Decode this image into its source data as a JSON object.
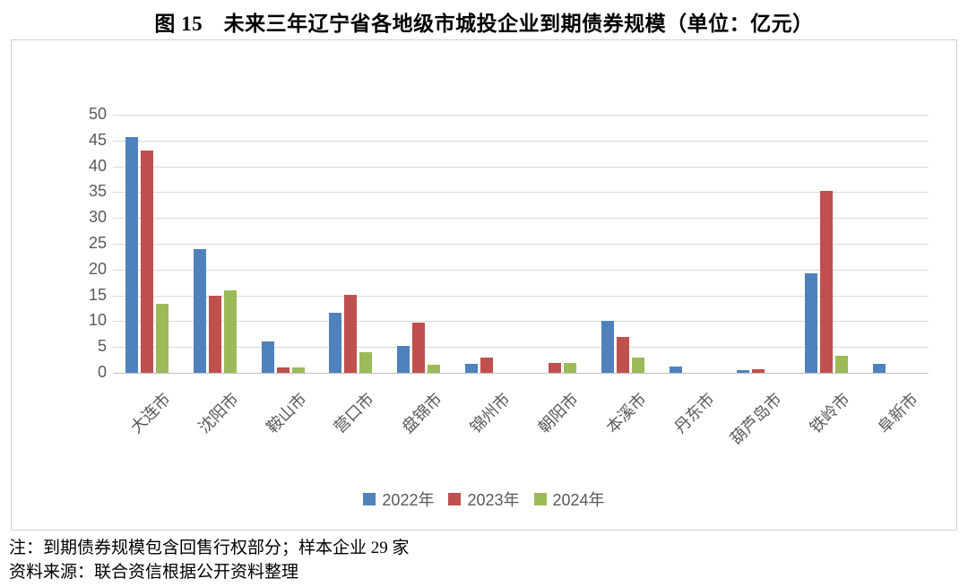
{
  "title": "图 15　未来三年辽宁省各地级市城投企业到期债券规模（单位：亿元）",
  "chart_data": {
    "type": "bar",
    "categories": [
      "大连市",
      "沈阳市",
      "鞍山市",
      "营口市",
      "盘锦市",
      "锦州市",
      "朝阳市",
      "本溪市",
      "丹东市",
      "葫芦岛市",
      "铁岭市",
      "阜新市"
    ],
    "series": [
      {
        "name": "2022年",
        "color": "#4F81BD",
        "values": [
          45.6,
          23.9,
          6.0,
          11.6,
          5.3,
          1.7,
          0,
          10.0,
          1.2,
          0.6,
          19.3,
          1.7
        ]
      },
      {
        "name": "2023年",
        "color": "#C0504D",
        "values": [
          43.0,
          15.0,
          1.1,
          15.1,
          9.8,
          2.9,
          2.0,
          6.9,
          0,
          0.7,
          35.3,
          0
        ]
      },
      {
        "name": "2024年",
        "color": "#9BBB59",
        "values": [
          13.4,
          16.0,
          1.1,
          4.0,
          1.6,
          0,
          1.9,
          3.0,
          0,
          0,
          3.3,
          0
        ]
      }
    ],
    "title": "图 15　未来三年辽宁省各地级市城投企业到期债券规模（单位：亿元）",
    "xlabel": "",
    "ylabel": "",
    "ylim": [
      0,
      50
    ],
    "ytick_step": 5,
    "yticks": [
      "0",
      "5",
      "10",
      "15",
      "20",
      "25",
      "30",
      "35",
      "40",
      "45",
      "50"
    ],
    "grid": true,
    "legend_position": "bottom"
  },
  "colors": {
    "series_blue": "#4F81BD",
    "series_red": "#C0504D",
    "series_green": "#9BBB59",
    "axis_text": "#595959",
    "gridline": "#D9D9D9",
    "chart_border": "#CFCFCF"
  },
  "footnotes": {
    "note": "注：到期债券规模包含回售行权部分；样本企业 29 家",
    "source": "资料来源：联合资信根据公开资料整理"
  }
}
